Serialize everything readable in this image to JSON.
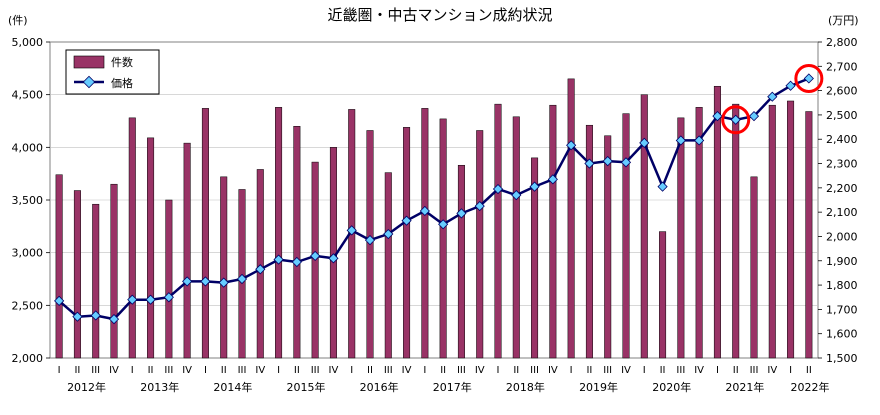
{
  "chart_data": {
    "type": "bar+line",
    "title": "近畿圏・中古マンション成約状況",
    "left_axis_unit": "(件)",
    "right_axis_unit": "(万円)",
    "left_ylim": [
      2000,
      5000
    ],
    "right_ylim": [
      1500,
      2800
    ],
    "left_ticks": [
      "2,000",
      "2,500",
      "3,000",
      "3,500",
      "4,000",
      "4,500",
      "5,000"
    ],
    "right_ticks": [
      "1,500",
      "1,600",
      "1,700",
      "1,800",
      "1,900",
      "2,000",
      "2,100",
      "2,200",
      "2,300",
      "2,400",
      "2,500",
      "2,600",
      "2,700",
      "2,800"
    ],
    "legend": {
      "position": "top-left",
      "bar_label": "件数",
      "line_label": "価格"
    },
    "quarters": [
      "I",
      "II",
      "III",
      "IV",
      "I",
      "II",
      "III",
      "IV",
      "I",
      "II",
      "III",
      "IV",
      "I",
      "II",
      "III",
      "IV",
      "I",
      "II",
      "III",
      "IV",
      "I",
      "II",
      "III",
      "IV",
      "I",
      "II",
      "III",
      "IV",
      "I",
      "II",
      "III",
      "IV",
      "I",
      "II",
      "III",
      "IV",
      "I",
      "II",
      "III",
      "IV",
      "I",
      "II"
    ],
    "years": [
      "2012年",
      "2013年",
      "2014年",
      "2015年",
      "2016年",
      "2017年",
      "2018年",
      "2019年",
      "2020年",
      "2021年",
      "2022年"
    ],
    "series": [
      {
        "name": "件数",
        "kind": "bar",
        "color": "#993366",
        "values": [
          3740,
          3590,
          3460,
          3650,
          4280,
          4090,
          3500,
          4040,
          4370,
          3720,
          3600,
          3790,
          4380,
          4200,
          3860,
          4000,
          4360,
          4160,
          3760,
          4190,
          4370,
          4270,
          3830,
          4160,
          4410,
          4290,
          3900,
          4400,
          4650,
          4210,
          4110,
          4320,
          4500,
          3200,
          4280,
          4380,
          4580,
          4410,
          3720,
          4400,
          4440,
          4340
        ]
      },
      {
        "name": "価格",
        "kind": "line",
        "color": "#000066",
        "marker_color": "#66ccff",
        "values": [
          1735,
          1670,
          1675,
          1660,
          1740,
          1740,
          1750,
          1815,
          1815,
          1810,
          1825,
          1865,
          1905,
          1895,
          1920,
          1910,
          2025,
          1985,
          2010,
          2065,
          2105,
          2050,
          2095,
          2125,
          2195,
          2170,
          2205,
          2235,
          2375,
          2300,
          2310,
          2305,
          2385,
          2205,
          2395,
          2395,
          2495,
          2480,
          2495,
          2575,
          2620,
          2650
        ]
      }
    ],
    "highlight_circles": [
      37,
      41
    ],
    "highlight_color": "#ff0000"
  }
}
